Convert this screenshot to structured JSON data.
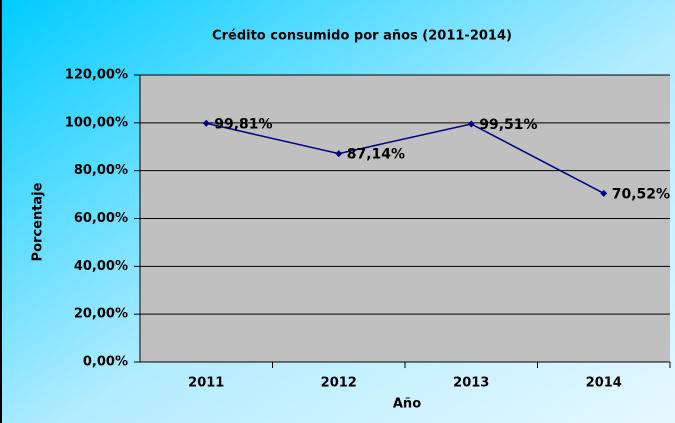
{
  "chart_data": {
    "type": "line",
    "title": "Crédito consumido por años (2011-2014)",
    "x_label": "Año",
    "y_label": "Porcentaje",
    "categories": [
      "2011",
      "2012",
      "2013",
      "2014"
    ],
    "series": [
      {
        "name": "Porcentaje",
        "color": "#000080",
        "values": [
          99.81,
          87.14,
          99.51,
          70.52
        ],
        "value_labels": [
          "99,81%",
          "87,14%",
          "99,51%",
          "70,52%"
        ]
      }
    ],
    "ylim": [
      0,
      120
    ],
    "yticks": [
      {
        "value": 0,
        "label": "0,00%"
      },
      {
        "value": 20,
        "label": "20,00%"
      },
      {
        "value": 40,
        "label": "40,00%"
      },
      {
        "value": 60,
        "label": "60,00%"
      },
      {
        "value": 80,
        "label": "80,00%"
      },
      {
        "value": 100,
        "label": "100,00%"
      },
      {
        "value": 120,
        "label": "120,00%"
      }
    ],
    "grid": true,
    "plot_background": "#c0c0c0"
  }
}
